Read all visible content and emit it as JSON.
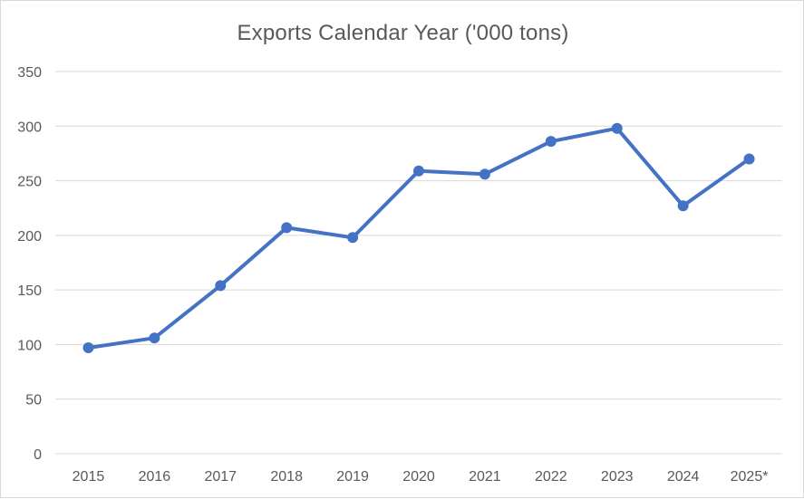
{
  "chart_data": {
    "type": "line",
    "title": "Exports Calendar Year ('000 tons)",
    "xlabel": "",
    "ylabel": "",
    "categories": [
      "2015",
      "2016",
      "2017",
      "2018",
      "2019",
      "2020",
      "2021",
      "2022",
      "2023",
      "2024",
      "2025*"
    ],
    "series": [
      {
        "values": [
          97,
          106,
          154,
          207,
          198,
          259,
          256,
          286,
          298,
          227,
          270
        ],
        "color": "#4472c4"
      }
    ],
    "ylim": [
      0,
      350
    ],
    "yticks": [
      "0",
      "50",
      "100",
      "150",
      "200",
      "250",
      "300",
      "350"
    ],
    "grid": true,
    "legend": "none",
    "gridline_color": "#d9d9d9",
    "text_color": "#595959"
  }
}
